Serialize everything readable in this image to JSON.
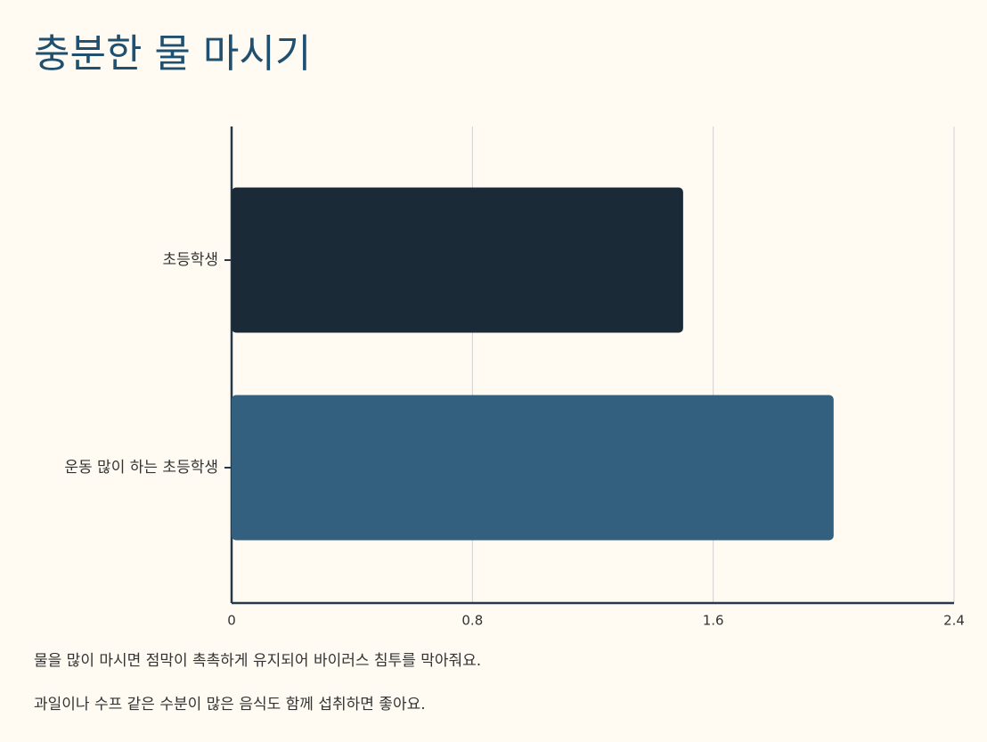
{
  "chart_data": {
    "type": "bar",
    "orientation": "horizontal",
    "title": "충분한 물 마시기",
    "categories": [
      "초등학생",
      "운동 많이 하는 초등학생"
    ],
    "values": [
      1.5,
      2.0
    ],
    "colors": [
      "#1a2a36",
      "#33607e"
    ],
    "xlim": [
      0,
      2.4
    ],
    "xticks": [
      0,
      0.8,
      1.6,
      2.4
    ],
    "grid": true,
    "notes": [
      "물을 많이 마시면 점막이 촉촉하게 유지되어 바이러스 침투를 막아줘요.",
      "과일이나 수프 같은 수분이 많은 음식도 함께 섭취하면 좋아요."
    ]
  }
}
